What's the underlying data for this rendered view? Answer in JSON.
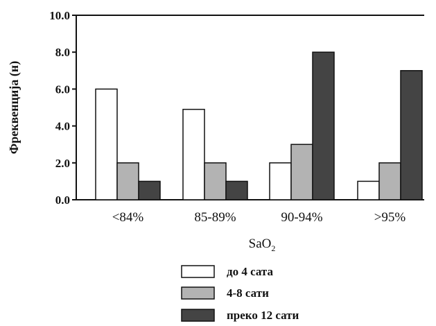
{
  "chart_data": {
    "type": "bar",
    "title": "",
    "xlabel": "SaO",
    "xlabel_subscript": "2",
    "ylabel": "Фреквенција (н)",
    "ylim": [
      0,
      10
    ],
    "yticks": [
      "0.0",
      "2.0",
      "4.0",
      "6.0",
      "8.0",
      "10.0"
    ],
    "categories": [
      "<84%",
      "85-89%",
      "90-94%",
      ">95%"
    ],
    "series": [
      {
        "name": "до 4 сата",
        "values": [
          6,
          4.9,
          2,
          1
        ],
        "color": "#ffffff"
      },
      {
        "name": "4-8 сати",
        "values": [
          2,
          2,
          3,
          2
        ],
        "color": "#b3b3b3"
      },
      {
        "name": "преко 12 сати",
        "values": [
          1,
          1,
          8,
          7
        ],
        "color": "#444444"
      }
    ],
    "grid": false,
    "legend_position": "bottom-center"
  }
}
